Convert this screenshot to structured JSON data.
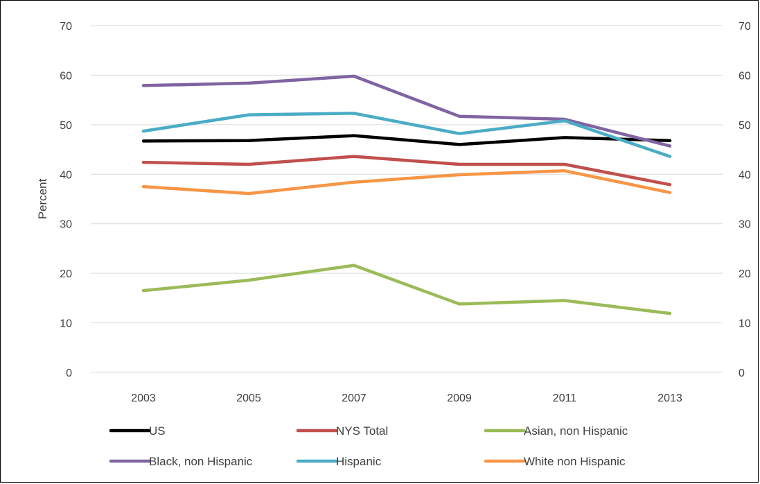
{
  "chart_data": {
    "type": "line",
    "title": "",
    "xlabel": "",
    "ylabel": "Percent",
    "ylim": [
      0,
      70
    ],
    "y_ticks": [
      "0",
      "10",
      "20",
      "30",
      "40",
      "50",
      "60",
      "70"
    ],
    "secondary_y_ticks": [
      "0",
      "10",
      "20",
      "30",
      "40",
      "50",
      "60",
      "70"
    ],
    "grid": true,
    "legend_position": "bottom",
    "categories": [
      "2003",
      "2005",
      "2007",
      "2009",
      "2011",
      "2013"
    ],
    "series": [
      {
        "name": "US",
        "color": "#000000",
        "values": [
          46.7,
          46.8,
          47.8,
          46.0,
          47.4,
          46.8
        ]
      },
      {
        "name": "NYS Total",
        "color": "#C0504D",
        "values": [
          42.4,
          42.0,
          43.6,
          42.0,
          42.0,
          37.9
        ]
      },
      {
        "name": "Asian, non Hispanic",
        "color": "#9BBB59",
        "values": [
          16.5,
          18.6,
          21.6,
          13.8,
          14.5,
          11.9
        ]
      },
      {
        "name": "Black, non Hispanic",
        "color": "#8064A2",
        "values": [
          57.9,
          58.4,
          59.8,
          51.7,
          51.1,
          45.7
        ]
      },
      {
        "name": "Hispanic",
        "color": "#4BACC6",
        "values": [
          48.7,
          52.0,
          52.3,
          48.2,
          50.8,
          43.6
        ]
      },
      {
        "name": "White non Hispanic",
        "color": "#F79646",
        "values": [
          37.5,
          36.1,
          38.4,
          39.9,
          40.7,
          36.3
        ]
      }
    ]
  }
}
